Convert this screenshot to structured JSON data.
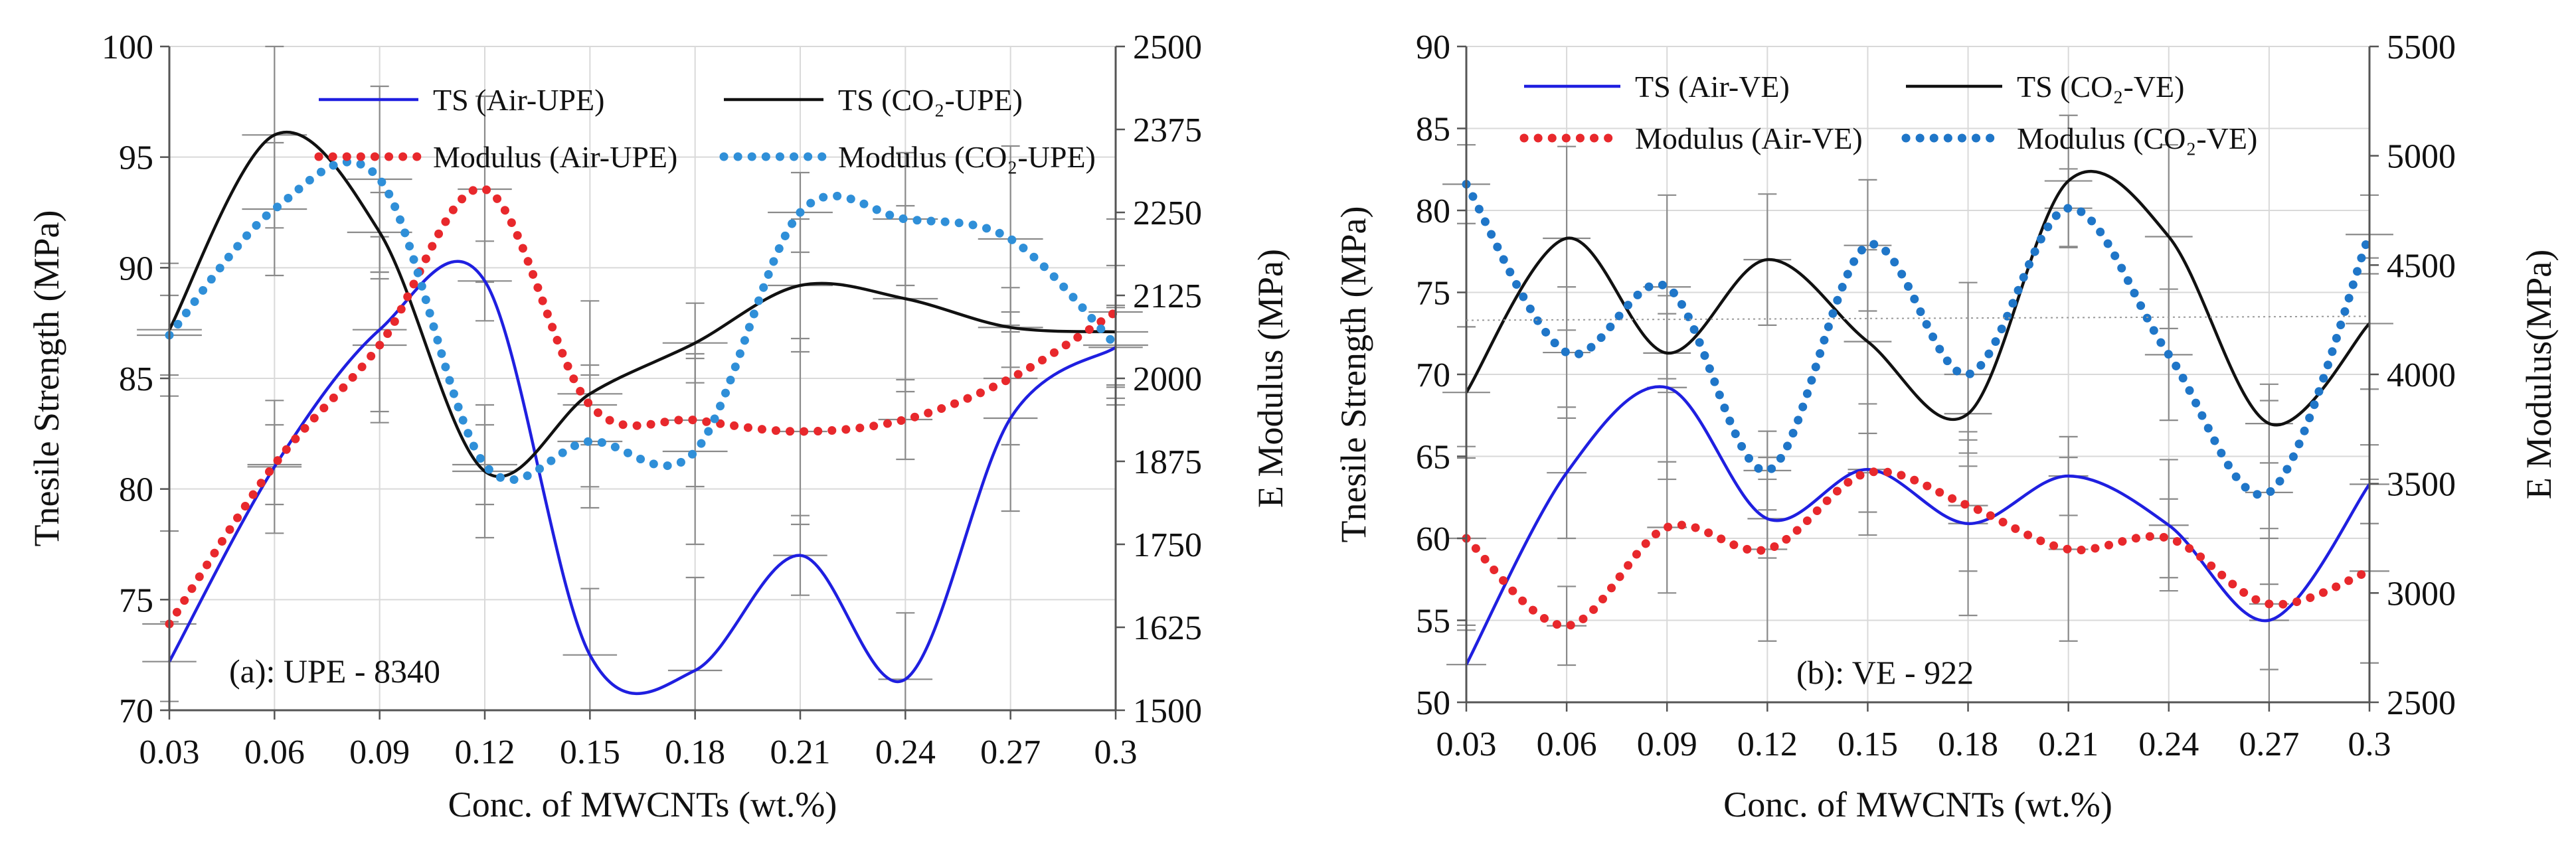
{
  "chart_data": [
    {
      "type": "line",
      "panel_label": "(a): UPE - 8340",
      "xlabel": "Conc. of MWCNTs (wt.%)",
      "ylabel": "Tnesile Strength (MPa)",
      "y2label": "E Modulus (MPa)",
      "x_ticks": [
        "0.03",
        "0.06",
        "0.09",
        "0.12",
        "0.15",
        "0.18",
        "0.21",
        "0.24",
        "0.27",
        "0.3"
      ],
      "xlim": [
        0.03,
        0.3
      ],
      "ylim": [
        70,
        100
      ],
      "y_ticks": [
        "70",
        "75",
        "80",
        "85",
        "90",
        "95",
        "100"
      ],
      "y2lim": [
        1500,
        2500
      ],
      "y2_ticks": [
        "1500",
        "1625",
        "1750",
        "1875",
        "2000",
        "2125",
        "2250",
        "2375",
        "2500"
      ],
      "grid": true,
      "series": [
        {
          "name": "TS (Air-UPE)",
          "axis": "left",
          "color": "#1f1fe0",
          "style": "solid",
          "x": [
            0.03,
            0.06,
            0.09,
            0.12,
            0.15,
            0.18,
            0.21,
            0.24,
            0.27,
            0.3
          ],
          "values": [
            72.2,
            81.0,
            87.2,
            89.4,
            72.5,
            71.8,
            77.0,
            71.4,
            83.2,
            86.4
          ]
        },
        {
          "name": "TS (CO₂-UPE)",
          "axis": "left",
          "color": "#111111",
          "style": "solid",
          "x": [
            0.03,
            0.06,
            0.09,
            0.12,
            0.15,
            0.18,
            0.21,
            0.24,
            0.27,
            0.3
          ],
          "values": [
            87.2,
            96.0,
            91.6,
            80.8,
            84.3,
            86.6,
            89.2,
            88.6,
            87.3,
            87.1
          ]
        },
        {
          "name": "Modulus (Air-UPE)",
          "axis": "right",
          "color": "#e8282c",
          "style": "dotted",
          "x": [
            0.03,
            0.06,
            0.09,
            0.12,
            0.15,
            0.18,
            0.21,
            0.24,
            0.27,
            0.3
          ],
          "values": [
            1630,
            1870,
            2050,
            2285,
            1960,
            1937,
            1920,
            1938,
            2000,
            2100
          ]
        },
        {
          "name": "Modulus (CO₂-UPE)",
          "axis": "right",
          "color": "#2f8fd8",
          "style": "dotted",
          "x": [
            0.03,
            0.06,
            0.09,
            0.12,
            0.15,
            0.18,
            0.21,
            0.24,
            0.27,
            0.3
          ],
          "values": [
            2065,
            2255,
            2300,
            1870,
            1905,
            1890,
            2250,
            2240,
            2210,
            2050
          ]
        }
      ],
      "legend": [
        {
          "label": "TS (Air-UPE)",
          "series": 0
        },
        {
          "label": "TS (CO₂-UPE)",
          "series": 1
        },
        {
          "label": "Modulus (Air-UPE)",
          "series": 2
        },
        {
          "label": "Modulus (CO₂-UPE)",
          "series": 3
        }
      ]
    },
    {
      "type": "line",
      "panel_label": "(b): VE - 922",
      "xlabel": "Conc. of MWCNTs (wt.%)",
      "ylabel": "Tnesile Strength (MPa)",
      "y2label": "E Modulus(MPa)",
      "x_ticks": [
        "0.03",
        "0.06",
        "0.09",
        "0.12",
        "0.15",
        "0.18",
        "0.21",
        "0.24",
        "0.27",
        "0.3"
      ],
      "xlim": [
        0.03,
        0.3
      ],
      "ylim": [
        50,
        90
      ],
      "y_ticks": [
        "50",
        "55",
        "60",
        "65",
        "70",
        "75",
        "80",
        "85",
        "90"
      ],
      "y2lim": [
        2500,
        5500
      ],
      "y2_ticks": [
        "2500",
        "3000",
        "3500",
        "4000",
        "4500",
        "5000",
        "5500"
      ],
      "grid": true,
      "series": [
        {
          "name": "TS (Air-VE)",
          "axis": "left",
          "color": "#1f1fe0",
          "style": "solid",
          "x": [
            0.03,
            0.06,
            0.09,
            0.12,
            0.15,
            0.18,
            0.21,
            0.24,
            0.27,
            0.3
          ],
          "values": [
            52.3,
            64.0,
            69.2,
            61.2,
            64.2,
            60.9,
            63.8,
            60.8,
            55.0,
            63.3
          ]
        },
        {
          "name": "TS (CO₂-VE)",
          "axis": "left",
          "color": "#111111",
          "style": "solid",
          "x": [
            0.03,
            0.06,
            0.09,
            0.12,
            0.15,
            0.18,
            0.21,
            0.24,
            0.27,
            0.3
          ],
          "values": [
            68.9,
            78.3,
            71.3,
            77.0,
            72.0,
            67.6,
            81.8,
            78.4,
            67.0,
            73.1
          ]
        },
        {
          "name": "Modulus (Air-VE)",
          "axis": "right",
          "color": "#e8282c",
          "style": "dotted",
          "x": [
            0.03,
            0.06,
            0.09,
            0.12,
            0.15,
            0.18,
            0.21,
            0.24,
            0.27,
            0.3
          ],
          "values": [
            3250,
            2850,
            3300,
            3200,
            3550,
            3400,
            3200,
            3250,
            2950,
            3100
          ]
        },
        {
          "name": "Modulus (CO₂-VE)",
          "axis": "right",
          "color": "#1f76c8",
          "style": "dotted",
          "x": [
            0.03,
            0.06,
            0.09,
            0.12,
            0.15,
            0.18,
            0.21,
            0.24,
            0.27,
            0.3
          ],
          "values": [
            4870,
            4100,
            4400,
            3560,
            4590,
            4000,
            4760,
            4090,
            3460,
            4640
          ]
        }
      ],
      "legend": [
        {
          "label": "TS (Air-VE)",
          "series": 0
        },
        {
          "label": "TS (CO₂-VE)",
          "series": 1
        },
        {
          "label": "Modulus (Air-VE)",
          "series": 2
        },
        {
          "label": "Modulus (CO₂-VE)",
          "series": 3
        }
      ]
    }
  ]
}
